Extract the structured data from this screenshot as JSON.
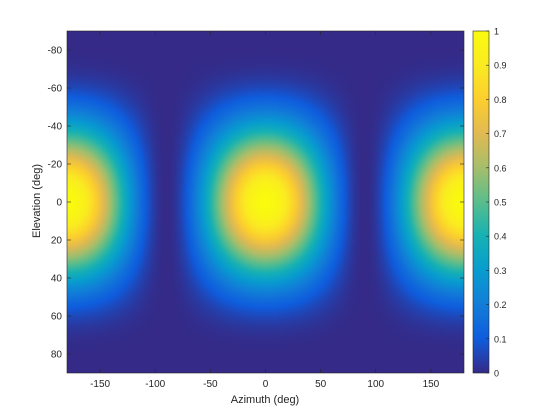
{
  "chart_data": {
    "type": "heatmap",
    "title": "",
    "xlabel": "Azimuth (deg)",
    "ylabel": "Elevation (deg)",
    "x_range": [
      -180,
      180
    ],
    "y_range": [
      -90,
      90
    ],
    "y_reversed": true,
    "x_ticks": [
      -150,
      -100,
      -50,
      0,
      50,
      100,
      150
    ],
    "y_ticks": [
      -80,
      -60,
      -40,
      -20,
      0,
      20,
      40,
      60,
      80
    ],
    "colorbar": {
      "range": [
        0,
        1
      ],
      "ticks": [
        0,
        0.1,
        0.2,
        0.3,
        0.4,
        0.5,
        0.6,
        0.7,
        0.8,
        0.9,
        1
      ]
    },
    "colormap": "parula",
    "lobes": [
      {
        "azimuth": -180,
        "elevation": 0,
        "peak": 1
      },
      {
        "azimuth": 0,
        "elevation": 0,
        "peak": 1
      },
      {
        "azimuth": 180,
        "elevation": 0,
        "peak": 1
      }
    ],
    "pattern_model": "cos(azimuth)^2 * cos(elevation)^4"
  }
}
